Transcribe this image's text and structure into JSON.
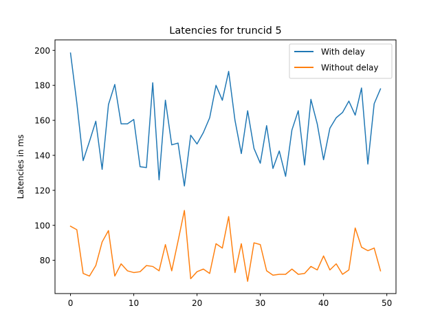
{
  "chart_data": {
    "type": "line",
    "title": "Latencies for truncid 5",
    "xlabel": "",
    "ylabel": "Latencies in ms",
    "xlim": [
      -2.45,
      51.45
    ],
    "ylim": [
      61.0,
      206.0
    ],
    "xticks": [
      0,
      10,
      20,
      30,
      40,
      50
    ],
    "yticks": [
      80,
      100,
      120,
      140,
      160,
      180,
      200
    ],
    "grid": false,
    "legend_position": "upper right",
    "x": [
      0,
      1,
      2,
      3,
      4,
      5,
      6,
      7,
      8,
      9,
      10,
      11,
      12,
      13,
      14,
      15,
      16,
      17,
      18,
      19,
      20,
      21,
      22,
      23,
      24,
      25,
      26,
      27,
      28,
      29,
      30,
      31,
      32,
      33,
      34,
      35,
      36,
      37,
      38,
      39,
      40,
      41,
      42,
      43,
      44,
      45,
      46,
      47,
      48,
      49
    ],
    "series": [
      {
        "name": "With delay",
        "color": "#1f77b4",
        "values": [
          198.5,
          170,
          137,
          148,
          159.5,
          132,
          169,
          180.5,
          158,
          158,
          160.5,
          133.5,
          133,
          181.5,
          126,
          171.5,
          146,
          147,
          122.5,
          151.5,
          146.5,
          153,
          161.5,
          180,
          171.5,
          188,
          160,
          141,
          165.5,
          144,
          135.5,
          157,
          132.5,
          142.5,
          128,
          154.5,
          165.5,
          134.5,
          172,
          158,
          137.5,
          155.5,
          161.5,
          164.5,
          171,
          163,
          178.5,
          135,
          169.5,
          178
        ]
      },
      {
        "name": "Without delay",
        "color": "#ff7f0e",
        "values": [
          99.5,
          97.5,
          72.5,
          71,
          77,
          90.5,
          97,
          71,
          78,
          74,
          73,
          73.5,
          77,
          76.5,
          74,
          89,
          74,
          91,
          108.5,
          69.5,
          73.5,
          75,
          72.5,
          89.5,
          87,
          105,
          73,
          89.5,
          68,
          90,
          89,
          74,
          71.5,
          72,
          72,
          75,
          72,
          72.5,
          76.5,
          74.5,
          82.5,
          74.5,
          78,
          72,
          74.5,
          98.5,
          87.5,
          85.5,
          87,
          74
        ]
      }
    ]
  }
}
